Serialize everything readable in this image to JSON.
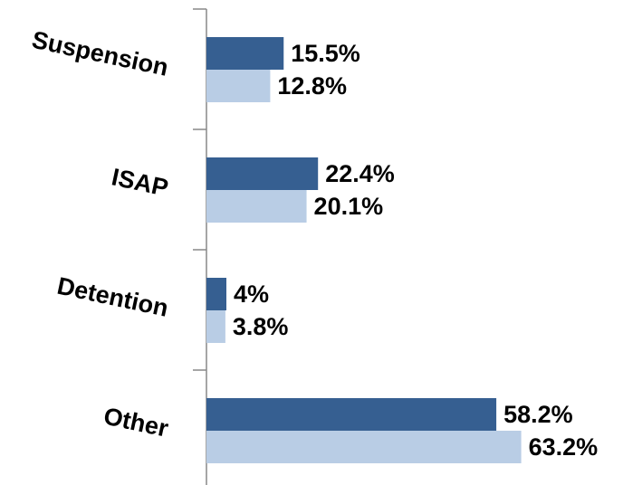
{
  "chart_data": {
    "type": "hbar",
    "categories": [
      "Suspension",
      "ISAP",
      "Detention",
      "Other"
    ],
    "series": [
      {
        "color": "#365f91",
        "values": [
          15.5,
          22.4,
          4,
          58.2
        ],
        "value_labels": [
          "15.5%",
          "22.4%",
          "4%",
          "58.2%"
        ]
      },
      {
        "color": "#b9cde5",
        "values": [
          12.8,
          20.1,
          3.8,
          63.2
        ],
        "value_labels": [
          "12.8%",
          "20.1%",
          "3.8%",
          "63.2%"
        ]
      }
    ],
    "xlim": [
      0,
      80
    ]
  }
}
